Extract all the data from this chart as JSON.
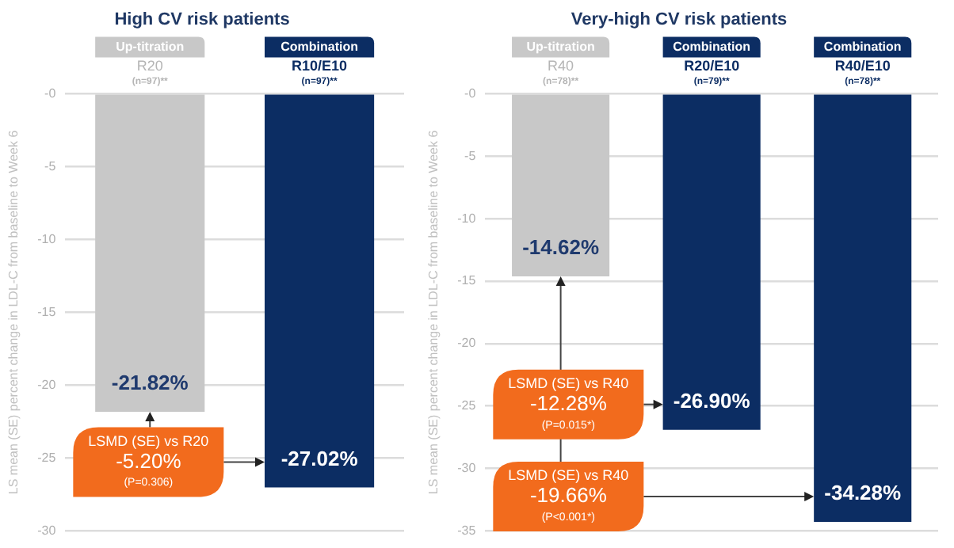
{
  "chart_data": [
    {
      "type": "bar",
      "title": "High CV risk patients",
      "ylabel": "LS mean (SE) percent change in LDL-C from baseline to Week 6",
      "categories": [
        "Up-titration\nR20\n(n=97)**",
        "Combination\nR10/E10\n(n=97)**"
      ],
      "values": [
        -21.82,
        -27.02
      ],
      "colors": [
        "#c8c8c8",
        "#0c2d63"
      ],
      "value_labels": [
        "-21.82%",
        "-27.02%"
      ],
      "ylim": [
        -30,
        0
      ],
      "yticks": [
        {
          "value": 0,
          "label": "-0"
        },
        -5,
        -10,
        -15,
        -20,
        -25,
        -30
      ],
      "grid": "y",
      "annotations": [
        "LSMD (SE) vs R20\n-5.20%\n(P=0.306)"
      ]
    },
    {
      "type": "bar",
      "title": "Very-high CV risk patients",
      "ylabel": "LS mean (SE) percent change in LDL-C from baseline to Week 6",
      "categories": [
        "Up-titration\nR40\n(n=78)**",
        "Combination\nR20/E10\n(n=79)**",
        "Combination\nR40/E10\n(n=78)**"
      ],
      "values": [
        -14.62,
        -26.9,
        -34.28
      ],
      "colors": [
        "#c8c8c8",
        "#0c2d63",
        "#0c2d63"
      ],
      "value_labels": [
        "-14.62%",
        "-26.90%",
        "-34.28%"
      ],
      "ylim": [
        -35,
        0
      ],
      "yticks": [
        {
          "value": 0,
          "label": "-0"
        },
        -5,
        -10,
        -15,
        -20,
        -25,
        -30,
        -35
      ],
      "grid": "y",
      "annotations": [
        "LSMD (SE) vs R40\n-12.28%\n(P=0.015*)",
        "LSMD (SE) vs R40\n-19.66%\n(P<0.001*)"
      ]
    }
  ]
}
